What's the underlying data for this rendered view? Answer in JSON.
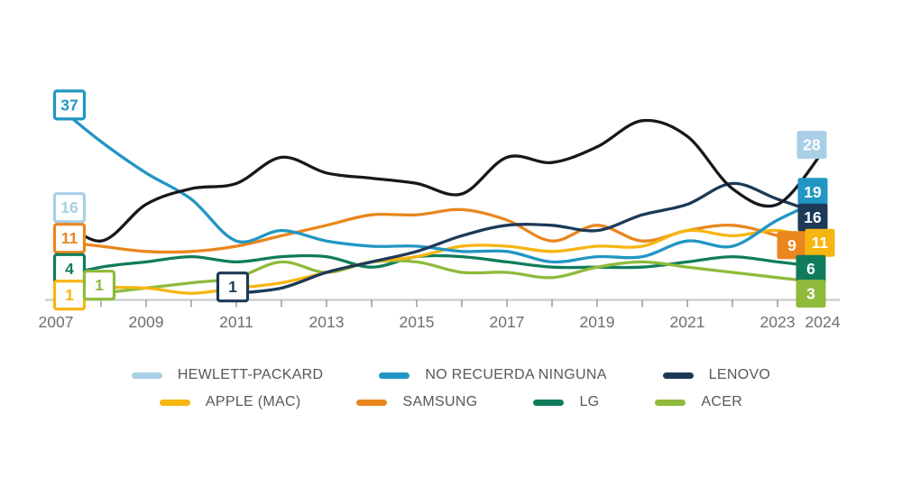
{
  "chart_data": {
    "type": "line",
    "title": "",
    "x": [
      2007,
      2008,
      2009,
      2010,
      2011,
      2012,
      2013,
      2014,
      2015,
      2016,
      2017,
      2018,
      2019,
      2020,
      2021,
      2022,
      2023,
      2024
    ],
    "x_tick_labels": [
      "2007",
      "2009",
      "2011",
      "2013",
      "2015",
      "2017",
      "2019",
      "2021",
      "2023",
      "2024"
    ],
    "ylim": [
      0,
      40
    ],
    "grid": false,
    "legend_position": "bottom",
    "series": [
      {
        "id": "hewlett-packard",
        "name": "HEWLETT-PACKARD",
        "line_color": "#15181d",
        "label_color": "#a9cfe6",
        "values": [
          16,
          11,
          18,
          21,
          22,
          27,
          24,
          23,
          22,
          20,
          27,
          26,
          29,
          34,
          31,
          21,
          18,
          28
        ],
        "start_label": "16",
        "end_label": "28"
      },
      {
        "id": "no-recuerda-ninguna",
        "name": "NO RECUERDA NINGUNA",
        "line_color": "#2196c4",
        "label_color": "#2196c4",
        "values": [
          37,
          30,
          24,
          19,
          11,
          13,
          11,
          10,
          10,
          9,
          9,
          7,
          8,
          8,
          11,
          10,
          15,
          19
        ],
        "start_label": "37",
        "end_label": "19"
      },
      {
        "id": "lenovo",
        "name": "LENOVO",
        "line_color": "#1c3a57",
        "label_color": "#1c3a57",
        "values": [
          null,
          null,
          null,
          null,
          1,
          2,
          5,
          7,
          9,
          12,
          14,
          14,
          13,
          16,
          18,
          22,
          19,
          16
        ],
        "start_label": "1",
        "end_label": "16"
      },
      {
        "id": "apple-mac",
        "name": "APPLE (MAC)",
        "line_color": "#f6b511",
        "label_color": "#f6b511",
        "values": [
          1,
          2,
          2,
          1,
          2,
          3,
          5,
          7,
          8,
          10,
          10,
          9,
          10,
          10,
          13,
          12,
          13,
          11
        ],
        "start_label": "1",
        "end_label": "11"
      },
      {
        "id": "samsung",
        "name": "SAMSUNG",
        "line_color": "#e9861e",
        "label_color": "#e9861e",
        "values": [
          11,
          10,
          9,
          9,
          10,
          12,
          14,
          16,
          16,
          17,
          15,
          11,
          14,
          11,
          13,
          14,
          12,
          9
        ],
        "start_label": "11",
        "end_label": "9"
      },
      {
        "id": "lg",
        "name": "LG",
        "line_color": "#107c5c",
        "label_color": "#107c5c",
        "values": [
          4,
          6,
          7,
          8,
          7,
          8,
          8,
          6,
          8,
          8,
          7,
          6,
          6,
          6,
          7,
          8,
          7,
          6
        ],
        "start_label": "4",
        "end_label": "6"
      },
      {
        "id": "acer",
        "name": "ACER",
        "line_color": "#8fba3c",
        "label_color": "#8fba3c",
        "values": [
          null,
          1,
          2,
          3,
          4,
          7,
          5,
          7,
          7,
          5,
          5,
          4,
          6,
          7,
          6,
          5,
          4,
          3
        ],
        "start_label": "1",
        "end_label": "3"
      }
    ],
    "legend_rows": [
      [
        "HEWLETT-PACKARD",
        "NO RECUERDA NINGUNA",
        "LENOVO"
      ],
      [
        "APPLE (MAC)",
        "SAMSUNG",
        "LG",
        "ACER"
      ]
    ],
    "axis": {
      "line_color": "#c3c5c7",
      "tick_color": "#a7aaac",
      "label_color": "#6d7073"
    }
  }
}
